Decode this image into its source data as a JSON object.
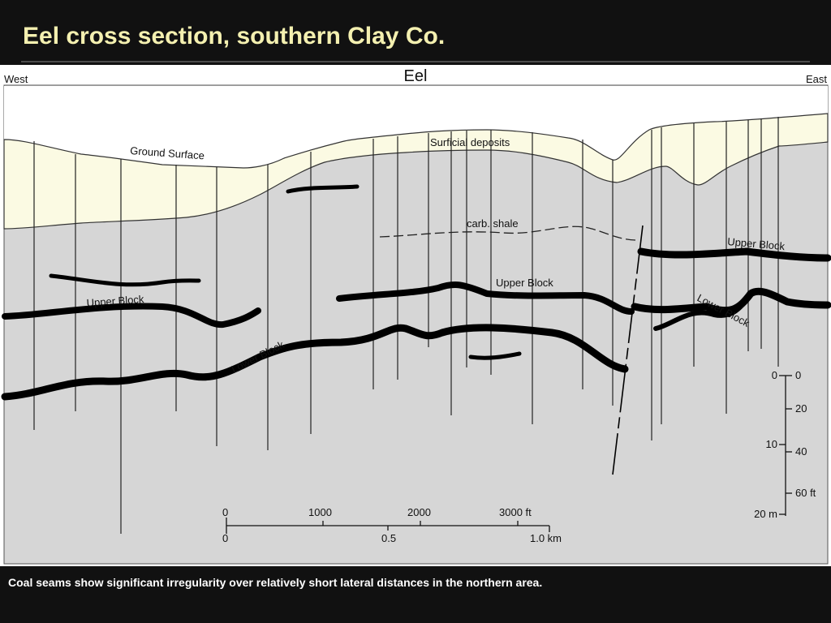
{
  "title": "Eel cross section, southern Clay Co.",
  "diagram": {
    "heading": "Eel",
    "west": "West",
    "east": "East",
    "labels": {
      "ground_surface": "Ground Surface",
      "surficial_deposits": "Surficial deposits",
      "carb_shale": "carb. shale",
      "upper_block_west": "Upper Block",
      "upper_block_central": "Upper Block",
      "upper_block_east": "Upper Block",
      "lower_block_west": "Lower Block",
      "lower_block_east": "Lower Block"
    },
    "horizontal_scale": {
      "feet": [
        "0",
        "1000",
        "2000",
        "3000 ft"
      ],
      "km": [
        "0",
        "0.5",
        "1.0 km"
      ]
    },
    "vertical_scale": {
      "feet": [
        "0",
        "20",
        "40",
        "60 ft"
      ],
      "meters": [
        "0",
        "10",
        "20 m"
      ]
    }
  },
  "caption": "Coal seams show significant irregularity over relatively short lateral distances in the northern area."
}
